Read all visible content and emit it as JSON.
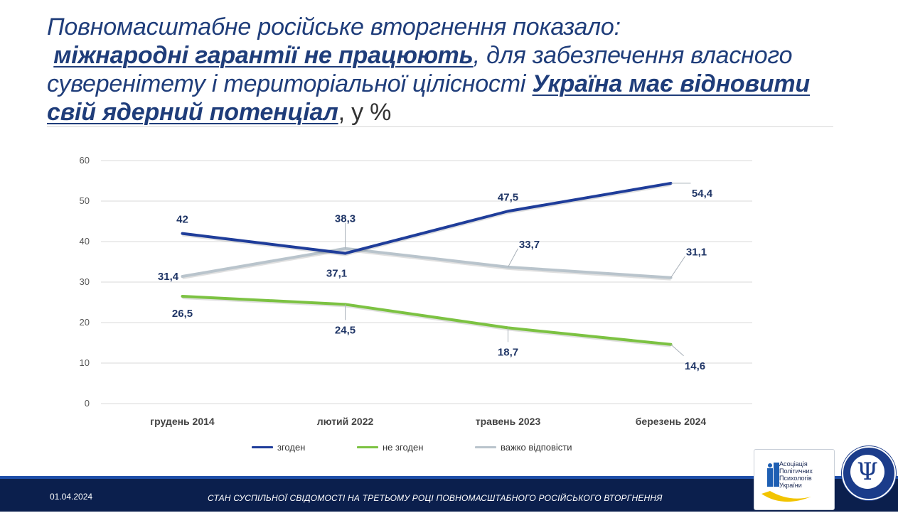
{
  "title": {
    "part1": "Повномасштабне російське вторгнення показало:",
    "part2": "міжнародні гарантії не працюють",
    "part3": ", для забезпечення власного суверенітету і територіальної цілісності ",
    "part4": "Україна має відновити свій ядерний потенціал",
    "part5": ", у %"
  },
  "chart_data": {
    "type": "line",
    "categories": [
      "грудень 2014",
      "лютий 2022",
      "травень 2023",
      "березень 2024"
    ],
    "series": [
      {
        "name": "згоден",
        "color": "#1f3d9a",
        "values": [
          42,
          37.1,
          47.5,
          54.4
        ],
        "labels": [
          "42",
          "37,1",
          "47,5",
          "54,4"
        ]
      },
      {
        "name": "не згоден",
        "color": "#7cc242",
        "values": [
          26.5,
          24.5,
          18.7,
          14.6
        ],
        "labels": [
          "26,5",
          "24,5",
          "18,7",
          "14,6"
        ]
      },
      {
        "name": "важко відповісти",
        "color": "#b9c4cc",
        "values": [
          31.4,
          38.3,
          33.7,
          31.1
        ],
        "labels": [
          "31,4",
          "38,3",
          "33,7",
          "31,1"
        ]
      }
    ],
    "ylim": [
      0,
      60
    ],
    "yticks": [
      "0",
      "10",
      "20",
      "30",
      "40",
      "50",
      "60"
    ],
    "grid": true,
    "legend": "bottom"
  },
  "footer": {
    "date": "01.04.2024",
    "caption": "СТАН СУСПІЛЬНОЇ СВІДОМОСТІ НА ТРЕТЬОМУ РОЦІ ПОВНОМАСШТАБНОГО РОСІЙСЬКОГО ВТОРГНЕННЯ"
  },
  "logo": {
    "lines": [
      "Асоціація",
      "Політичних",
      "Психологів",
      "України"
    ],
    "seal_symbol": "Ψ"
  }
}
